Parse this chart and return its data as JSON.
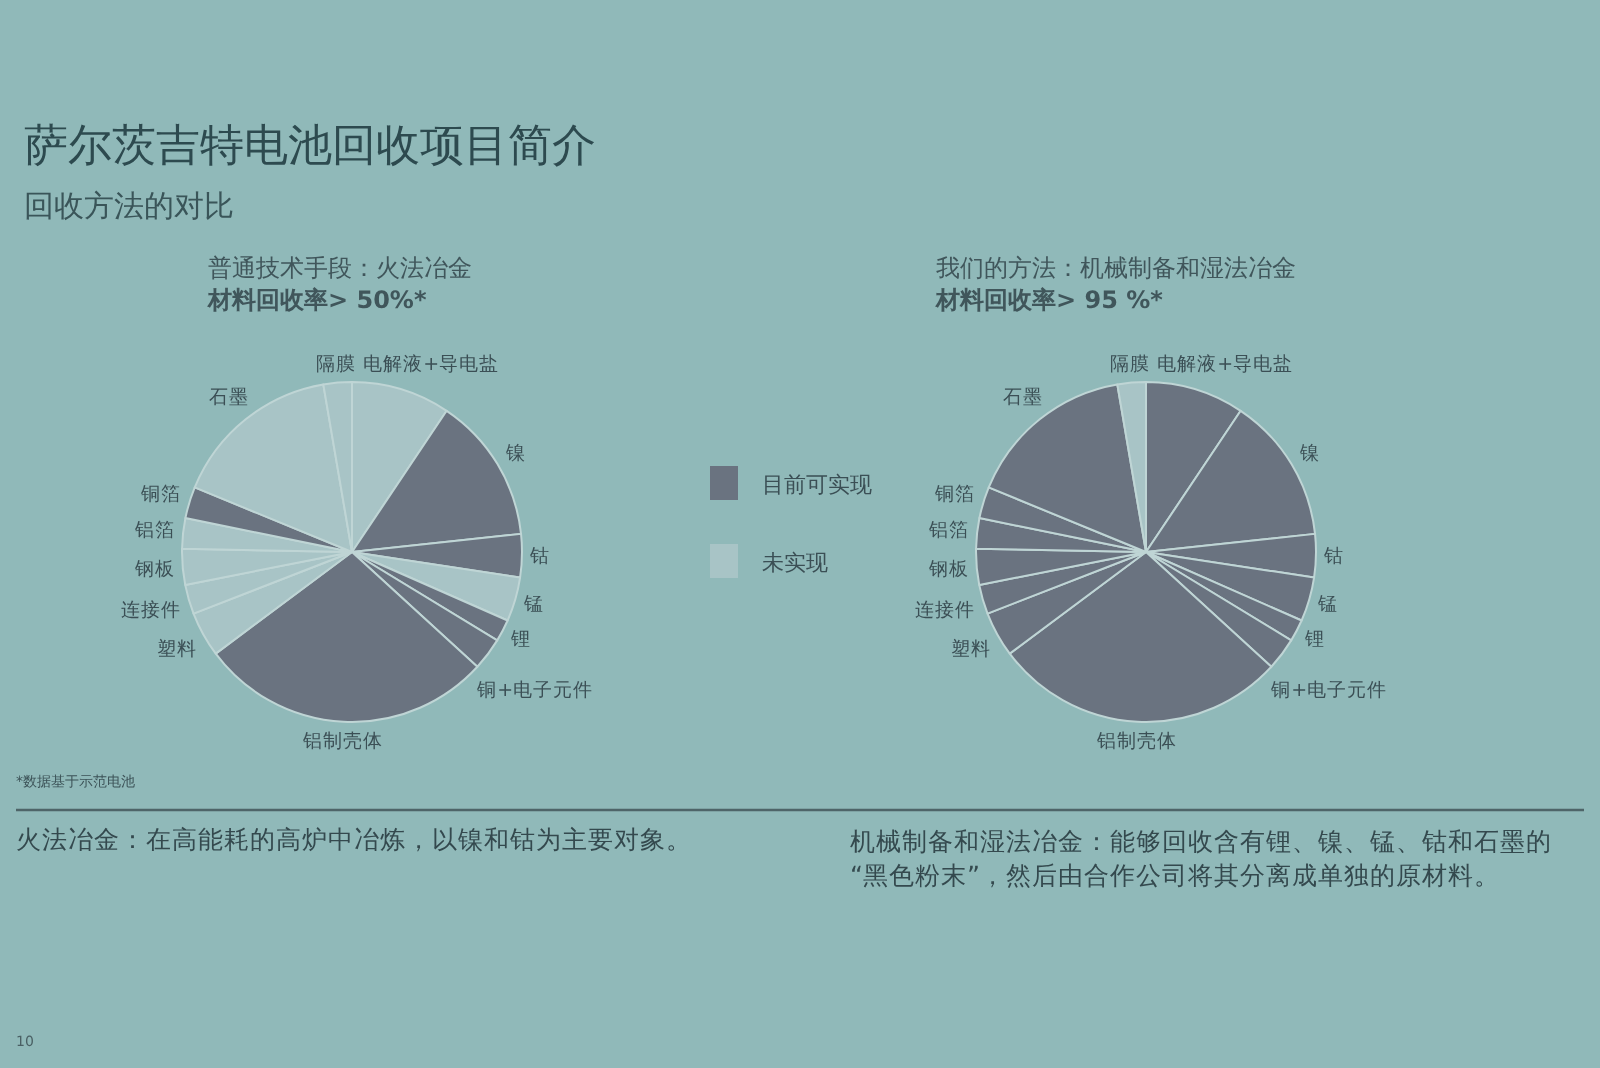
{
  "chart_data": [
    {
      "type": "pie",
      "title": "普通技术手段：火法冶金",
      "subtitle": "材料回收率> 50%*",
      "categories": [
        "电解液+导电盐",
        "镍",
        "钴",
        "锰",
        "锂",
        "铜+电子元件",
        "铝制壳体",
        "塑料",
        "连接件",
        "钢板",
        "铝箔",
        "铜箔",
        "石墨",
        "隔膜"
      ],
      "values": [
        9.4,
        13.9,
        4.1,
        4.2,
        2.1,
        3.1,
        28.0,
        4.3,
        2.8,
        3.4,
        2.9,
        3.0,
        16.1,
        2.7
      ],
      "colors": [
        "#a8c4c6",
        "#6a7380",
        "#6a7380",
        "#a8c4c6",
        "#6a7380",
        "#6a7380",
        "#6a7380",
        "#a8c4c6",
        "#a8c4c6",
        "#a8c4c6",
        "#a8c4c6",
        "#6a7380",
        "#a8c4c6",
        "#a8c4c6"
      ],
      "annotations": [
        "萨尔茨吉特电池回收项目简介",
        "回收方法的对比",
        "*数据基于示范电池",
        "火法冶金：在高能耗的高炉中冶炼，以镍和钴为主要对象。",
        "10",
        "目前可实现",
        "未实现"
      ]
    },
    {
      "type": "pie",
      "title": "我们的方法：机械制备和湿法冶金",
      "subtitle": "材料回收率> 95 %*",
      "categories": [
        "电解液+导电盐",
        "镍",
        "钴",
        "锰",
        "锂",
        "铜+电子元件",
        "铝制壳体",
        "塑料",
        "连接件",
        "钢板",
        "铝箔",
        "铜箔",
        "石墨",
        "隔膜"
      ],
      "values": [
        9.4,
        13.9,
        4.1,
        4.2,
        2.1,
        3.1,
        28.0,
        4.3,
        2.8,
        3.4,
        2.9,
        3.0,
        16.1,
        2.7
      ],
      "colors": [
        "#6a7380",
        "#6a7380",
        "#6a7380",
        "#6a7380",
        "#6a7380",
        "#6a7380",
        "#6a7380",
        "#6a7380",
        "#6a7380",
        "#6a7380",
        "#6a7380",
        "#6a7380",
        "#6a7380",
        "#a8c4c6"
      ],
      "annotations": [
        "机械制备和湿法冶金：能够回收含有锂、镍、锰、钴和石墨的“黑色粉末”，然后由合作公司将其分离成单独的原材料。"
      ]
    }
  ]
}
